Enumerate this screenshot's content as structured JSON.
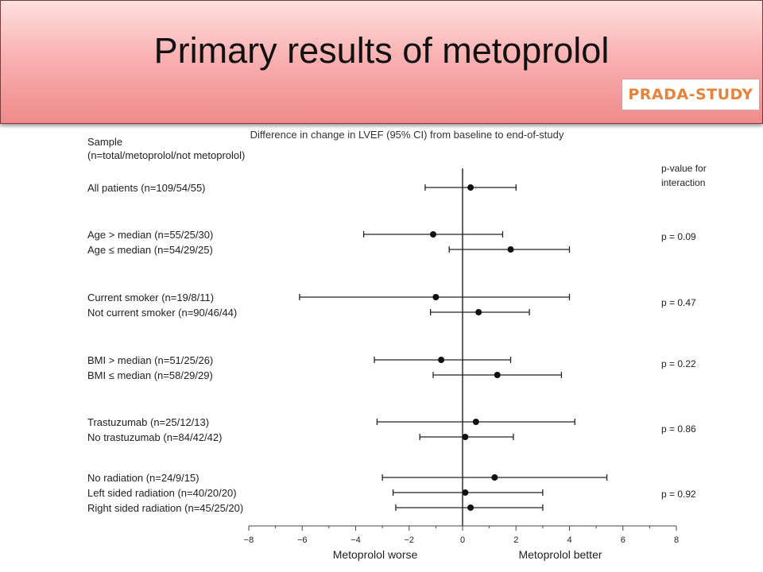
{
  "slide": {
    "title": "Primary results of metoprolol",
    "badge": "PRADA-STUDY"
  },
  "chart_data": {
    "type": "forest",
    "title": "Difference in change in LVEF (95% CI) from baseline to end-of-study",
    "sample_header": [
      "Sample",
      "(n=total/metoprolol/not metoprolol)"
    ],
    "pvalue_header": [
      "p-value for",
      "interaction"
    ],
    "xlim": [
      -8,
      8
    ],
    "xticks": [
      -8,
      -6,
      -4,
      -2,
      0,
      2,
      4,
      6,
      8
    ],
    "xtick_labels": [
      "−8",
      "−6",
      "−4",
      "−2",
      "0",
      "2",
      "4",
      "6",
      "8"
    ],
    "xlabel_left": "Metoprolol worse",
    "xlabel_right": "Metoprolol better",
    "groups": [
      {
        "pvalue": "",
        "rows": [
          {
            "label": "All patients (n=109/54/55)",
            "estimate": 0.3,
            "lower": -1.4,
            "upper": 2.0
          }
        ]
      },
      {
        "pvalue": "p = 0.09",
        "rows": [
          {
            "label": "Age > median (n=55/25/30)",
            "estimate": -1.1,
            "lower": -3.7,
            "upper": 1.5
          },
          {
            "label": "Age ≤ median (n=54/29/25)",
            "estimate": 1.8,
            "lower": -0.5,
            "upper": 4.0
          }
        ]
      },
      {
        "pvalue": "p = 0.47",
        "rows": [
          {
            "label": "Current smoker (n=19/8/11)",
            "estimate": -1.0,
            "lower": -6.1,
            "upper": 4.0
          },
          {
            "label": "Not current smoker (n=90/46/44)",
            "estimate": 0.6,
            "lower": -1.2,
            "upper": 2.5
          }
        ]
      },
      {
        "pvalue": "p = 0.22",
        "rows": [
          {
            "label": "BMI > median (n=51/25/26)",
            "estimate": -0.8,
            "lower": -3.3,
            "upper": 1.8
          },
          {
            "label": "BMI ≤ median (n=58/29/29)",
            "estimate": 1.3,
            "lower": -1.1,
            "upper": 3.7
          }
        ]
      },
      {
        "pvalue": "p = 0.86",
        "rows": [
          {
            "label": "Trastuzumab (n=25/12/13)",
            "estimate": 0.5,
            "lower": -3.2,
            "upper": 4.2
          },
          {
            "label": "No trastuzumab (n=84/42/42)",
            "estimate": 0.1,
            "lower": -1.6,
            "upper": 1.9
          }
        ]
      },
      {
        "pvalue": "p = 0.92",
        "rows": [
          {
            "label": "No radiation (n=24/9/15)",
            "estimate": 1.2,
            "lower": -3.0,
            "upper": 5.4
          },
          {
            "label": "Left sided radiation (n=40/20/20)",
            "estimate": 0.1,
            "lower": -2.6,
            "upper": 3.0
          },
          {
            "label": "Right sided radiation (n=45/25/20)",
            "estimate": 0.3,
            "lower": -2.5,
            "upper": 3.0
          }
        ]
      }
    ]
  }
}
